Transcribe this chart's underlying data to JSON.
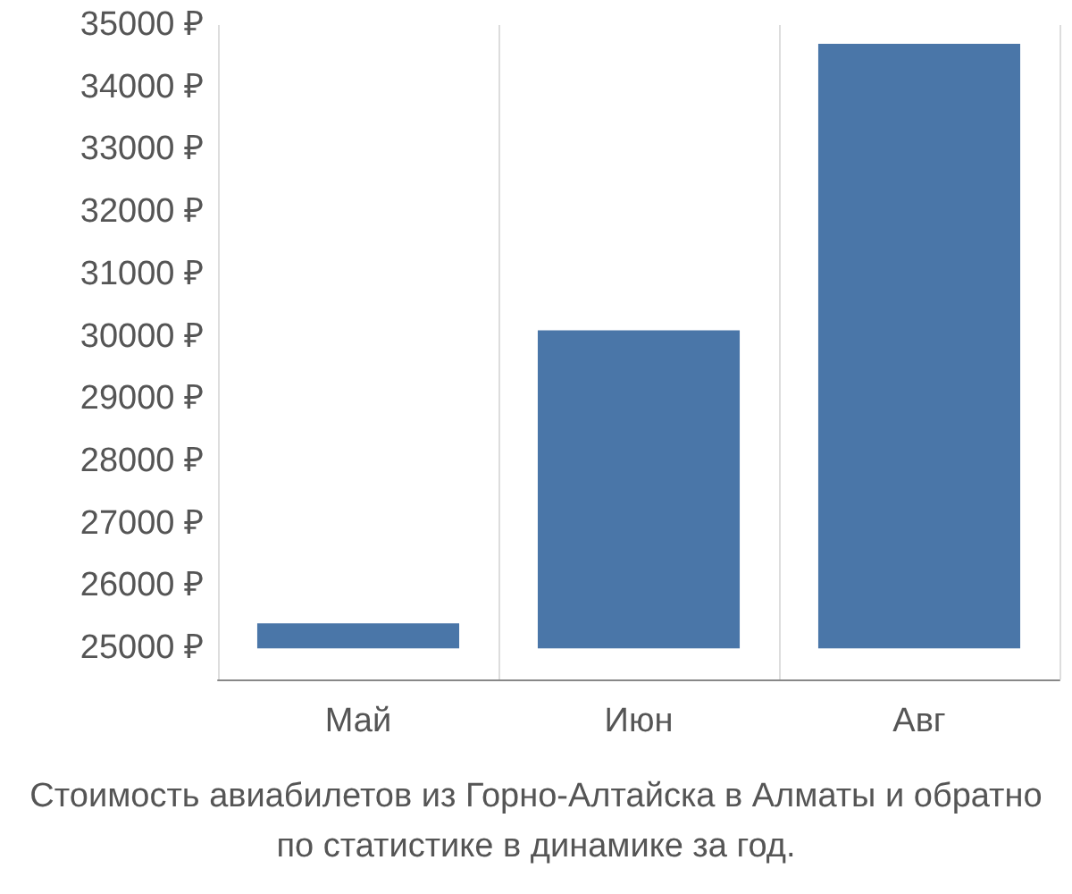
{
  "chart_data": {
    "type": "bar",
    "categories": [
      "Май",
      "Июн",
      "Авг"
    ],
    "base": [
      25000,
      25000,
      25000
    ],
    "values": [
      400,
      5100,
      9700
    ],
    "color": "#4a76a8",
    "ylim": [
      24500,
      35000
    ],
    "yticks": [
      {
        "value": 25000,
        "label": "25000 ₽"
      },
      {
        "value": 26000,
        "label": "26000 ₽"
      },
      {
        "value": 27000,
        "label": "27000 ₽"
      },
      {
        "value": 28000,
        "label": "28000 ₽"
      },
      {
        "value": 29000,
        "label": "29000 ₽"
      },
      {
        "value": 30000,
        "label": "30000 ₽"
      },
      {
        "value": 31000,
        "label": "31000 ₽"
      },
      {
        "value": 32000,
        "label": "32000 ₽"
      },
      {
        "value": 33000,
        "label": "33000 ₽"
      },
      {
        "value": 34000,
        "label": "34000 ₽"
      },
      {
        "value": 35000,
        "label": "35000 ₽"
      }
    ],
    "grid": "x",
    "annotations": [
      "Стоимость авиабилетов из Горно-Алтайска в Алматы и обратно",
      "по статистике в динамике за год."
    ]
  }
}
